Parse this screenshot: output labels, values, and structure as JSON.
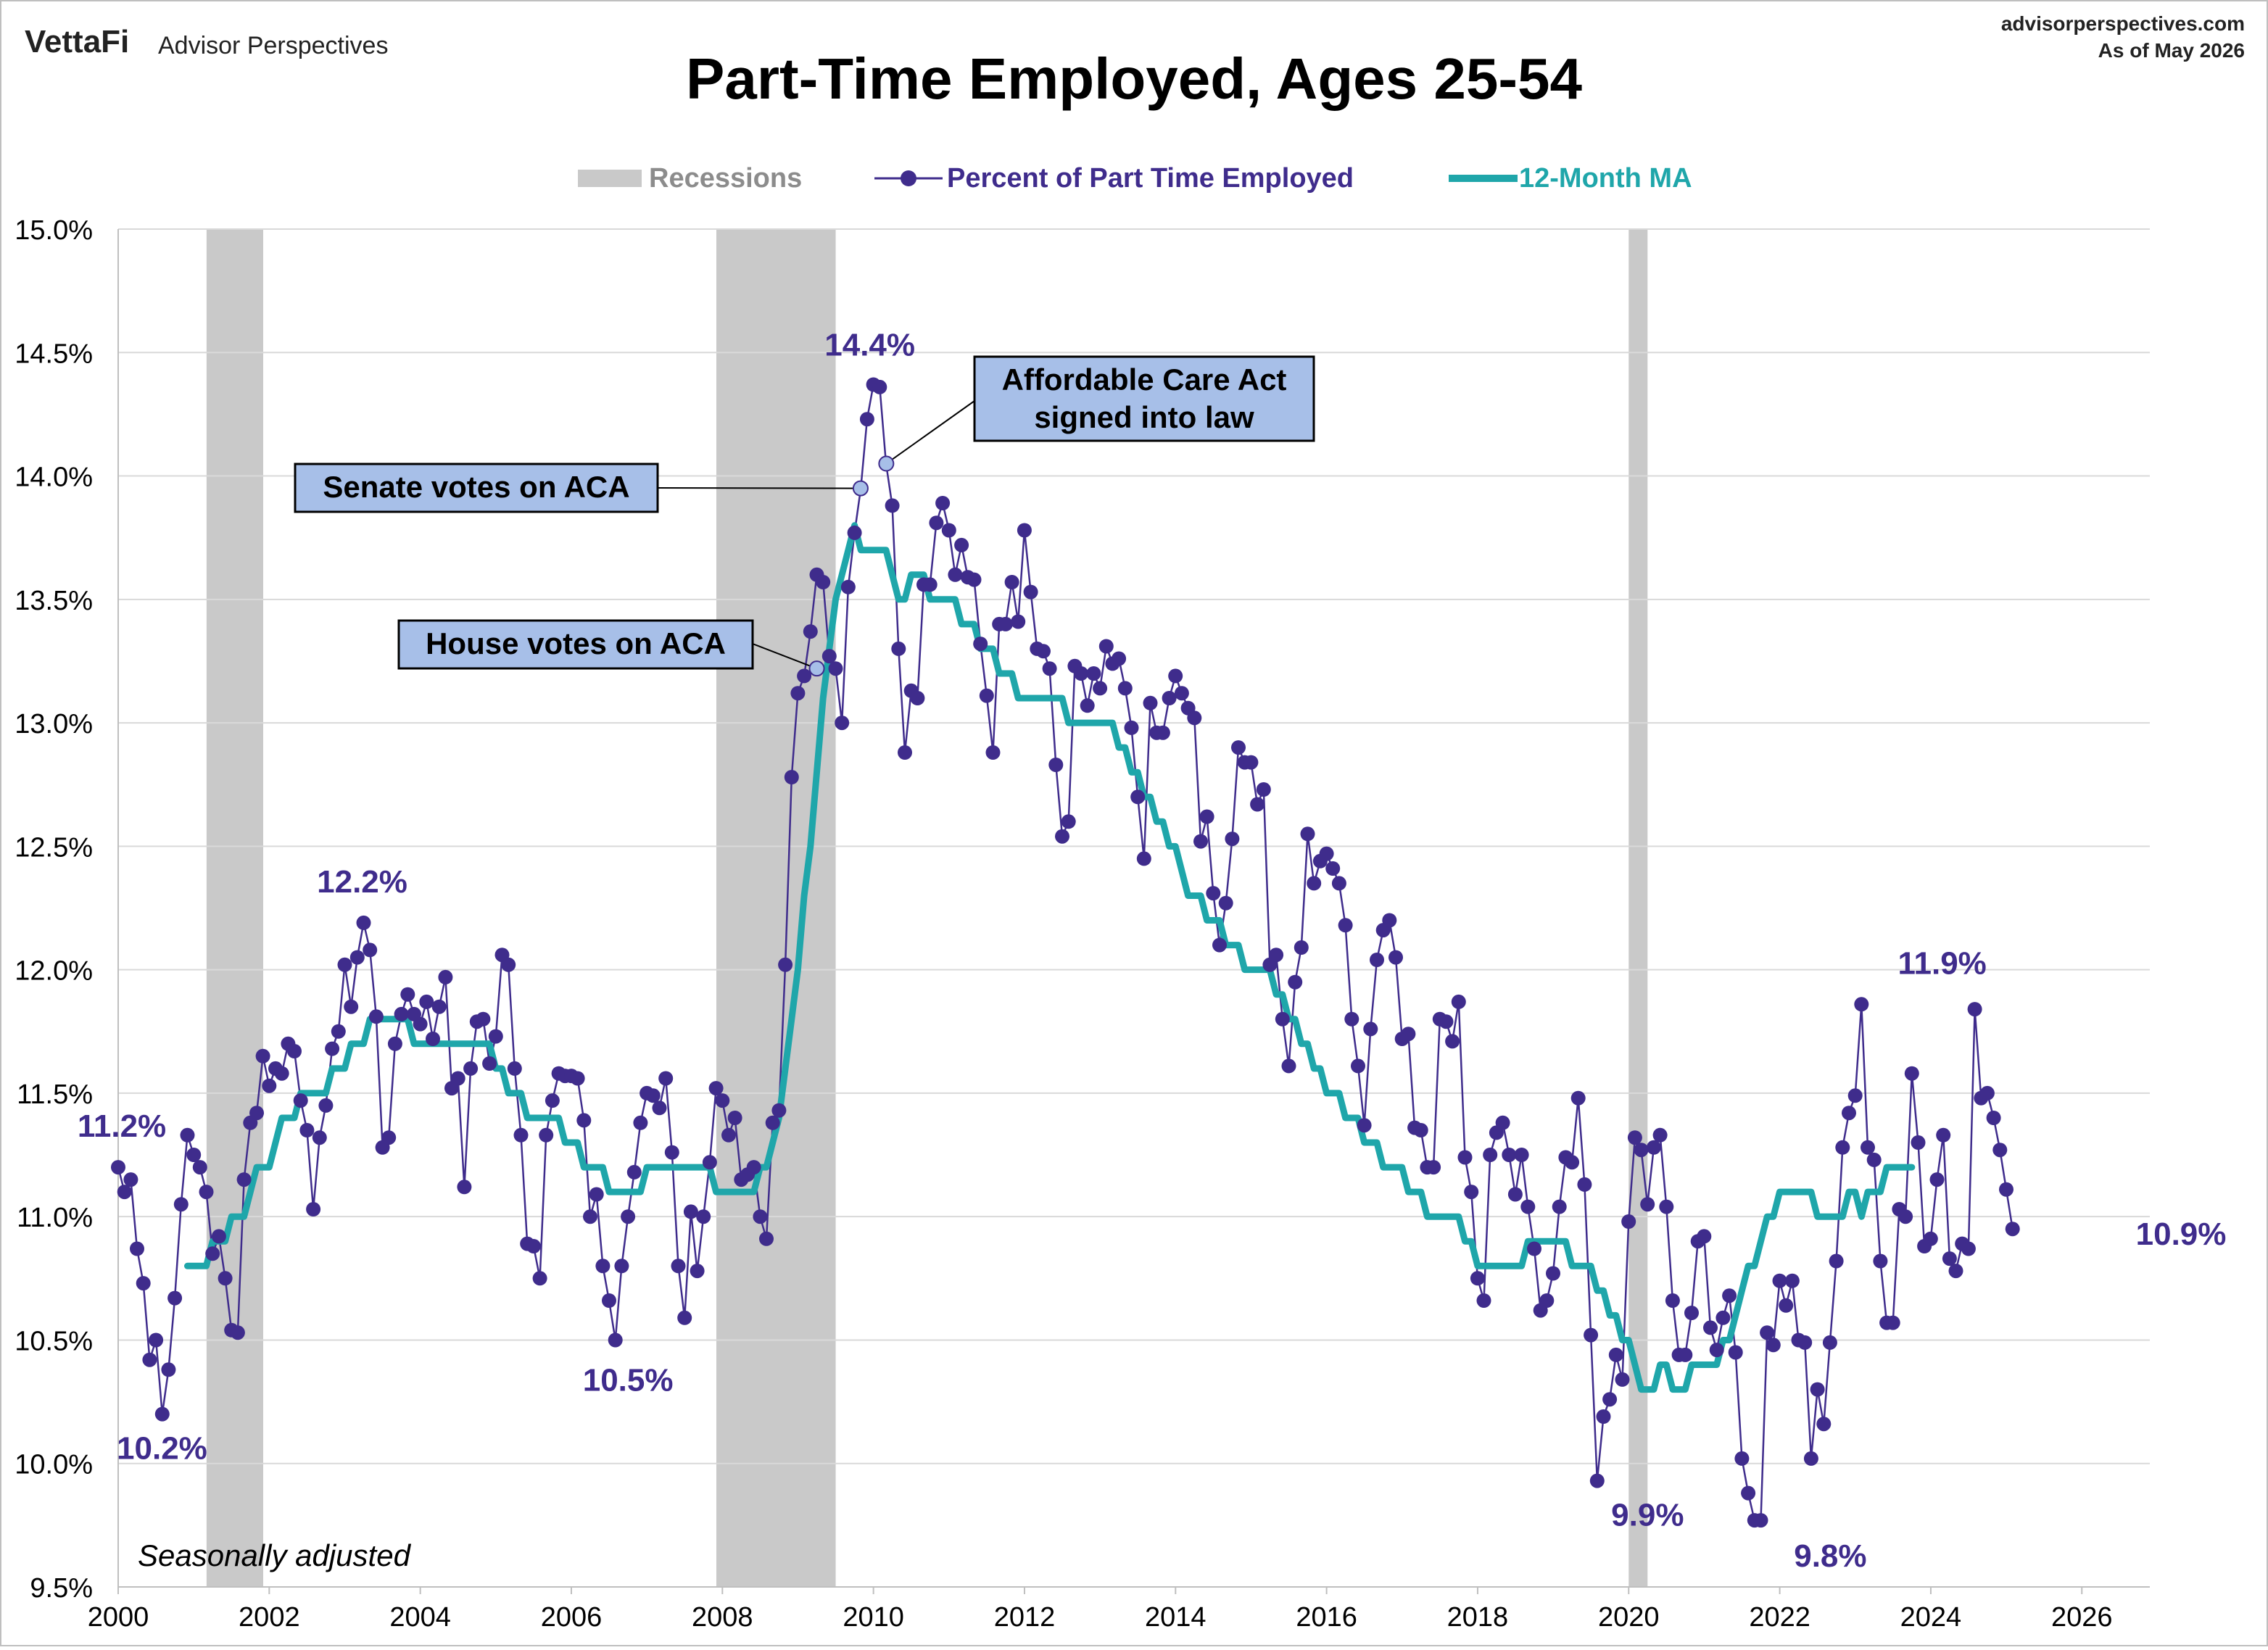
{
  "header": {
    "brand": "VettaFi",
    "brand_sub": "Advisor Perspectives",
    "site": "advisorperspectives.com",
    "asof": "As of May 2026"
  },
  "chart_data": {
    "type": "line",
    "title": "Part-Time Employed, Ages 25-54",
    "subtitle": "",
    "xlabel": "",
    "ylabel": "",
    "xlim": [
      2000,
      2026.9
    ],
    "ylim": [
      9.5,
      15.0
    ],
    "y_ticks": [
      "9.5%",
      "10.0%",
      "10.5%",
      "11.0%",
      "11.5%",
      "12.0%",
      "12.5%",
      "13.0%",
      "13.5%",
      "14.0%",
      "14.5%",
      "15.0%"
    ],
    "x_ticks": [
      "2000",
      "2002",
      "2004",
      "2006",
      "2008",
      "2010",
      "2012",
      "2014",
      "2016",
      "2018",
      "2020",
      "2022",
      "2024",
      "2026"
    ],
    "grid": "horizontal",
    "legend": {
      "placement": "top-center",
      "items": [
        "Recessions",
        "Percent of Part Time Employed",
        "12-Month MA"
      ]
    },
    "colors": {
      "series": "#3f2c8c",
      "ma": "#1fa6aa",
      "recession": "#c9c9c9",
      "callout_fill": "#a7bfe8"
    },
    "recessions": [
      [
        2001.17,
        2001.92
      ],
      [
        2007.92,
        2009.5
      ],
      [
        2020.0,
        2020.25
      ]
    ],
    "series": [
      {
        "name": "Percent of Part Time Employed",
        "x_start": 2000.0,
        "step": 0.08333,
        "values": [
          11.2,
          11.1,
          11.15,
          10.87,
          10.73,
          10.42,
          10.5,
          10.2,
          10.38,
          10.67,
          11.05,
          11.33,
          11.25,
          11.2,
          11.1,
          10.85,
          10.92,
          10.75,
          10.54,
          10.53,
          11.15,
          11.38,
          11.42,
          11.65,
          11.53,
          11.6,
          11.58,
          11.7,
          11.67,
          11.47,
          11.35,
          11.03,
          11.32,
          11.45,
          11.68,
          11.75,
          12.02,
          11.85,
          12.05,
          12.19,
          12.08,
          11.81,
          11.28,
          11.32,
          11.7,
          11.82,
          11.9,
          11.82,
          11.78,
          11.87,
          11.72,
          11.85,
          11.97,
          11.52,
          11.56,
          11.12,
          11.6,
          11.79,
          11.8,
          11.62,
          11.73,
          12.06,
          12.02,
          11.6,
          11.33,
          10.89,
          10.88,
          10.75,
          11.33,
          11.47,
          11.58,
          11.57,
          11.57,
          11.56,
          11.39,
          11.0,
          11.09,
          10.8,
          10.66,
          10.5,
          10.8,
          11.0,
          11.18,
          11.38,
          11.5,
          11.49,
          11.44,
          11.56,
          11.26,
          10.8,
          10.59,
          11.02,
          10.78,
          11.0,
          11.22,
          11.52,
          11.47,
          11.33,
          11.4,
          11.15,
          11.17,
          11.2,
          11.0,
          10.91,
          11.38,
          11.43,
          12.02,
          12.78,
          13.12,
          13.19,
          13.37,
          13.6,
          13.57,
          13.27,
          13.22,
          13.0,
          13.55,
          13.77,
          13.95,
          14.23,
          14.37,
          14.36,
          14.05,
          13.88,
          13.3,
          12.88,
          13.13,
          13.1,
          13.56,
          13.56,
          13.81,
          13.89,
          13.78,
          13.6,
          13.72,
          13.59,
          13.58,
          13.32,
          13.11,
          12.88,
          13.4,
          13.4,
          13.57,
          13.41,
          13.78,
          13.53,
          13.3,
          13.29,
          13.22,
          12.83,
          12.54,
          12.6,
          13.23,
          13.2,
          13.07,
          13.2,
          13.14,
          13.31,
          13.24,
          13.26,
          13.14,
          12.98,
          12.7,
          12.45,
          13.08,
          12.96,
          12.96,
          13.1,
          13.19,
          13.12,
          13.06,
          13.02,
          12.52,
          12.62,
          12.31,
          12.1,
          12.27,
          12.53,
          12.9,
          12.84,
          12.84,
          12.67,
          12.73,
          12.02,
          12.06,
          11.8,
          11.61,
          11.95,
          12.09,
          12.55,
          12.35,
          12.44,
          12.47,
          12.41,
          12.35,
          12.18,
          11.8,
          11.61,
          11.37,
          11.76,
          12.04,
          12.16,
          12.2,
          12.05,
          11.72,
          11.74,
          11.36,
          11.35,
          11.2,
          11.2,
          11.8,
          11.79,
          11.71,
          11.87,
          11.24,
          11.1,
          10.75,
          10.66,
          11.25,
          11.34,
          11.38,
          11.25,
          11.09,
          11.25,
          11.04,
          10.87,
          10.62,
          10.66,
          10.77,
          11.04,
          11.24,
          11.22,
          11.48,
          11.13,
          10.52,
          9.93,
          10.19,
          10.26,
          10.44,
          10.34,
          10.98,
          11.32,
          11.27,
          11.05,
          11.28,
          11.33,
          11.04,
          10.66,
          10.44,
          10.44,
          10.61,
          10.9,
          10.92,
          10.55,
          10.46,
          10.59,
          10.68,
          10.45,
          10.02,
          9.88,
          9.77,
          9.77,
          10.53,
          10.48,
          10.74,
          10.64,
          10.74,
          10.5,
          10.49,
          10.02,
          10.3,
          10.16,
          10.49,
          10.82,
          11.28,
          11.42,
          11.49,
          11.86,
          11.28,
          11.23,
          10.82,
          10.57,
          10.57,
          11.03,
          11.0,
          11.58,
          11.3,
          10.88,
          10.91,
          11.15,
          11.33,
          10.83,
          10.78,
          10.89,
          10.87,
          11.84,
          11.48,
          11.5,
          11.4,
          11.27,
          11.11,
          10.95
        ]
      },
      {
        "name": "12-Month MA",
        "x_start": 2000.9167,
        "step": 0.08333,
        "values": [
          10.8,
          10.8,
          10.8,
          10.8,
          10.9,
          10.9,
          10.9,
          11.0,
          11.0,
          11.0,
          11.1,
          11.2,
          11.2,
          11.2,
          11.3,
          11.4,
          11.4,
          11.4,
          11.5,
          11.5,
          11.5,
          11.5,
          11.5,
          11.6,
          11.6,
          11.6,
          11.7,
          11.7,
          11.7,
          11.8,
          11.8,
          11.8,
          11.8,
          11.8,
          11.8,
          11.8,
          11.7,
          11.7,
          11.7,
          11.7,
          11.7,
          11.7,
          11.7,
          11.7,
          11.7,
          11.7,
          11.7,
          11.7,
          11.7,
          11.6,
          11.6,
          11.5,
          11.5,
          11.5,
          11.4,
          11.4,
          11.4,
          11.4,
          11.4,
          11.4,
          11.3,
          11.3,
          11.3,
          11.2,
          11.2,
          11.2,
          11.2,
          11.1,
          11.1,
          11.1,
          11.1,
          11.1,
          11.1,
          11.2,
          11.2,
          11.2,
          11.2,
          11.2,
          11.2,
          11.2,
          11.2,
          11.2,
          11.2,
          11.2,
          11.1,
          11.1,
          11.1,
          11.1,
          11.1,
          11.1,
          11.1,
          11.2,
          11.2,
          11.3,
          11.4,
          11.6,
          11.8,
          12.0,
          12.3,
          12.5,
          12.8,
          13.1,
          13.3,
          13.5,
          13.6,
          13.7,
          13.8,
          13.7,
          13.7,
          13.7,
          13.7,
          13.7,
          13.6,
          13.5,
          13.5,
          13.6,
          13.6,
          13.6,
          13.5,
          13.5,
          13.5,
          13.5,
          13.5,
          13.4,
          13.4,
          13.4,
          13.3,
          13.3,
          13.3,
          13.2,
          13.2,
          13.2,
          13.1,
          13.1,
          13.1,
          13.1,
          13.1,
          13.1,
          13.1,
          13.1,
          13.0,
          13.0,
          13.0,
          13.0,
          13.0,
          13.0,
          13.0,
          13.0,
          12.9,
          12.9,
          12.8,
          12.8,
          12.7,
          12.7,
          12.6,
          12.6,
          12.5,
          12.5,
          12.4,
          12.3,
          12.3,
          12.3,
          12.2,
          12.2,
          12.2,
          12.1,
          12.1,
          12.1,
          12.0,
          12.0,
          12.0,
          12.0,
          12.0,
          11.9,
          11.9,
          11.8,
          11.8,
          11.7,
          11.7,
          11.6,
          11.6,
          11.5,
          11.5,
          11.5,
          11.4,
          11.4,
          11.4,
          11.3,
          11.3,
          11.3,
          11.2,
          11.2,
          11.2,
          11.2,
          11.1,
          11.1,
          11.1,
          11.0,
          11.0,
          11.0,
          11.0,
          11.0,
          11.0,
          10.9,
          10.9,
          10.8,
          10.8,
          10.8,
          10.8,
          10.8,
          10.8,
          10.8,
          10.8,
          10.9,
          10.9,
          10.9,
          10.9,
          10.9,
          10.9,
          10.9,
          10.8,
          10.8,
          10.8,
          10.8,
          10.7,
          10.7,
          10.6,
          10.6,
          10.5,
          10.5,
          10.4,
          10.3,
          10.3,
          10.3,
          10.4,
          10.4,
          10.3,
          10.3,
          10.3,
          10.4,
          10.4,
          10.4,
          10.4,
          10.4,
          10.5,
          10.5,
          10.6,
          10.7,
          10.8,
          10.8,
          10.9,
          11.0,
          11.0,
          11.1,
          11.1,
          11.1,
          11.1,
          11.1,
          11.1,
          11.0,
          11.0,
          11.0,
          11.0,
          11.0,
          11.1,
          11.1,
          11.0,
          11.1,
          11.1,
          11.1,
          11.2,
          11.2,
          11.2,
          11.2,
          11.2
        ]
      }
    ],
    "data_labels": [
      {
        "x": 2000.0,
        "y": 11.2,
        "text": "11.2%"
      },
      {
        "x": 2000.58,
        "y": 10.2,
        "text": "10.2%"
      },
      {
        "x": 2003.25,
        "y": 12.19,
        "text": "12.2%"
      },
      {
        "x": 2006.75,
        "y": 10.5,
        "text": "10.5%"
      },
      {
        "x": 2010.0,
        "y": 14.37,
        "text": "14.4%"
      },
      {
        "x": 2020.25,
        "y": 9.93,
        "text": "9.9%"
      },
      {
        "x": 2022.67,
        "y": 9.77,
        "text": "9.8%"
      },
      {
        "x": 2024.17,
        "y": 11.86,
        "text": "11.9%"
      },
      {
        "x": 2026.33,
        "y": 10.95,
        "text": "10.9%"
      }
    ],
    "annotations": [
      {
        "text": "House votes on ACA",
        "x": 2009.25,
        "y": 13.22
      },
      {
        "text": "Senate votes on ACA",
        "x": 2009.83,
        "y": 13.95
      },
      {
        "text": "Affordable Care Act signed into law",
        "x": 2010.17,
        "y": 14.05
      }
    ],
    "note": "Seasonally adjusted"
  }
}
